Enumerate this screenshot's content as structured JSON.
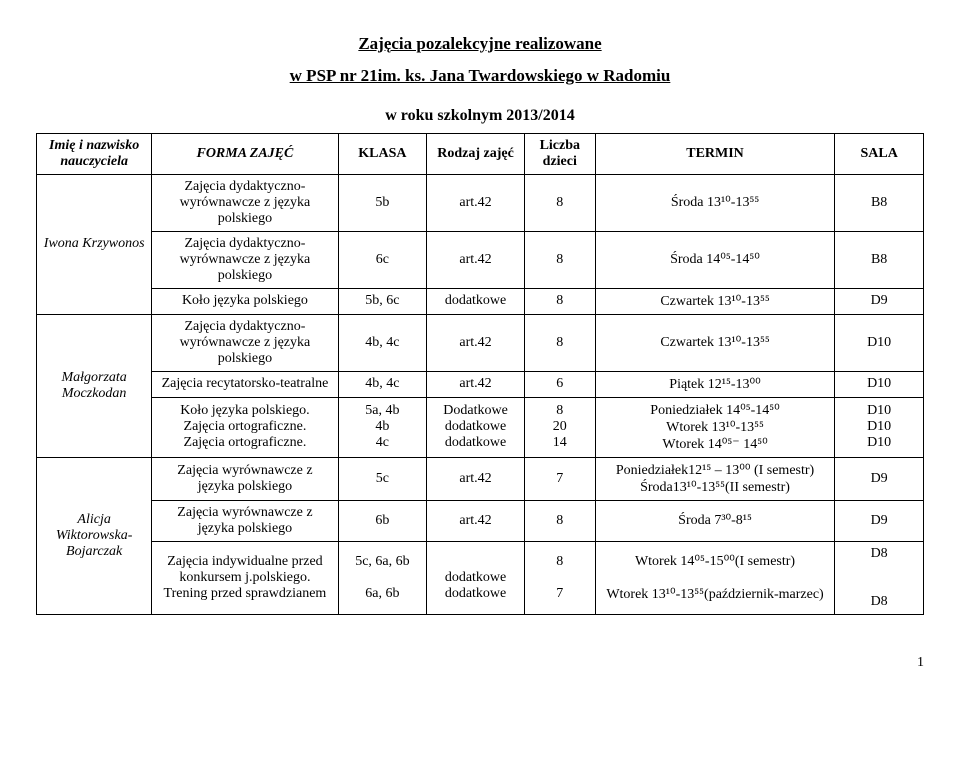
{
  "title_line1": "Zajęcia pozalekcyjne realizowane",
  "title_line2": "w PSP nr 21im. ks. Jana Twardowskiego w Radomiu",
  "subhead": "w roku szkolnym 2013/2014",
  "headers": {
    "name": "Imię i nazwisko nauczyciela",
    "form": "FORMA ZAJĘĆ",
    "class": "KLASA",
    "type": "Rodzaj zajęć",
    "count": "Liczba dzieci",
    "term": "TERMIN",
    "room": "SALA"
  },
  "teachers": {
    "t1": "Iwona Krzywonos",
    "t2": "Małgorzata Moczkodan",
    "t3": "Alicja Wiktorowska-Bojarczak"
  },
  "r1": {
    "act": "Zajęcia dydaktyczno-wyrównawcze z języka polskiego",
    "cls": "5b",
    "typ": "art.42",
    "cnt": "8",
    "term": "Środa 13¹⁰-13⁵⁵",
    "room": "B8"
  },
  "r2": {
    "act": "Zajęcia dydaktyczno-wyrównawcze z języka polskiego",
    "cls": "6c",
    "typ": "art.42",
    "cnt": "8",
    "term": "Środa 14⁰⁵-14⁵⁰",
    "room": "B8"
  },
  "r3": {
    "act": "Koło języka polskiego",
    "cls": "5b, 6c",
    "typ": "dodatkowe",
    "cnt": "8",
    "term": "Czwartek 13¹⁰-13⁵⁵",
    "room": "D9"
  },
  "r4": {
    "act": "Zajęcia dydaktyczno-wyrównawcze z języka polskiego",
    "cls": "4b, 4c",
    "typ": "art.42",
    "cnt": "8",
    "term": "Czwartek 13¹⁰-13⁵⁵",
    "room": "D10"
  },
  "r5": {
    "act": "Zajęcia recytatorsko-teatralne",
    "cls": "4b, 4c",
    "typ": "art.42",
    "cnt": "6",
    "term": "Piątek 12¹⁵-13⁰⁰",
    "room": "D10"
  },
  "r6": {
    "act": "Koło języka polskiego.",
    "cls": "5a, 4b",
    "typ": "Dodatkowe",
    "cnt": "8",
    "term": "Poniedziałek 14⁰⁵-14⁵⁰",
    "room": "D10"
  },
  "r7": {
    "act": "Zajęcia ortograficzne.",
    "cls": "4b",
    "typ": "dodatkowe",
    "cnt": "20",
    "term": "Wtorek 13¹⁰-13⁵⁵",
    "room": "D10"
  },
  "r8": {
    "act": "Zajęcia ortograficzne.",
    "cls": "4c",
    "typ": "dodatkowe",
    "cnt": "14",
    "term": "Wtorek 14⁰⁵⁻ 14⁵⁰",
    "room": "D10"
  },
  "r9": {
    "act": "Zajęcia wyrównawcze z języka polskiego",
    "cls": "5c",
    "typ": "art.42",
    "cnt": "7",
    "term": "Poniedziałek12¹⁵ – 13⁰⁰ (I semestr) Środa13¹⁰-13⁵⁵(II semestr)",
    "room": "D9"
  },
  "r10": {
    "act": "Zajęcia wyrównawcze z języka polskiego",
    "cls": "6b",
    "typ": "art.42",
    "cnt": "8",
    "term": "Środa 7³⁰-8¹⁵",
    "room": "D9"
  },
  "r11a": {
    "act": "Zajęcia indywidualne przed konkursem j.polskiego.",
    "cls": "5c, 6a, 6b",
    "typ": "dodatkowe",
    "cnt": "8",
    "term": "Wtorek 14⁰⁵-15⁰⁰(I semestr)",
    "room": "D8"
  },
  "r11b": {
    "act": "Trening przed sprawdzianem",
    "cls": "6a, 6b",
    "typ": "dodatkowe",
    "cnt": "7",
    "term": "Wtorek 13¹⁰-13⁵⁵(październik-marzec)",
    "room": "D8"
  },
  "page_num": "1"
}
